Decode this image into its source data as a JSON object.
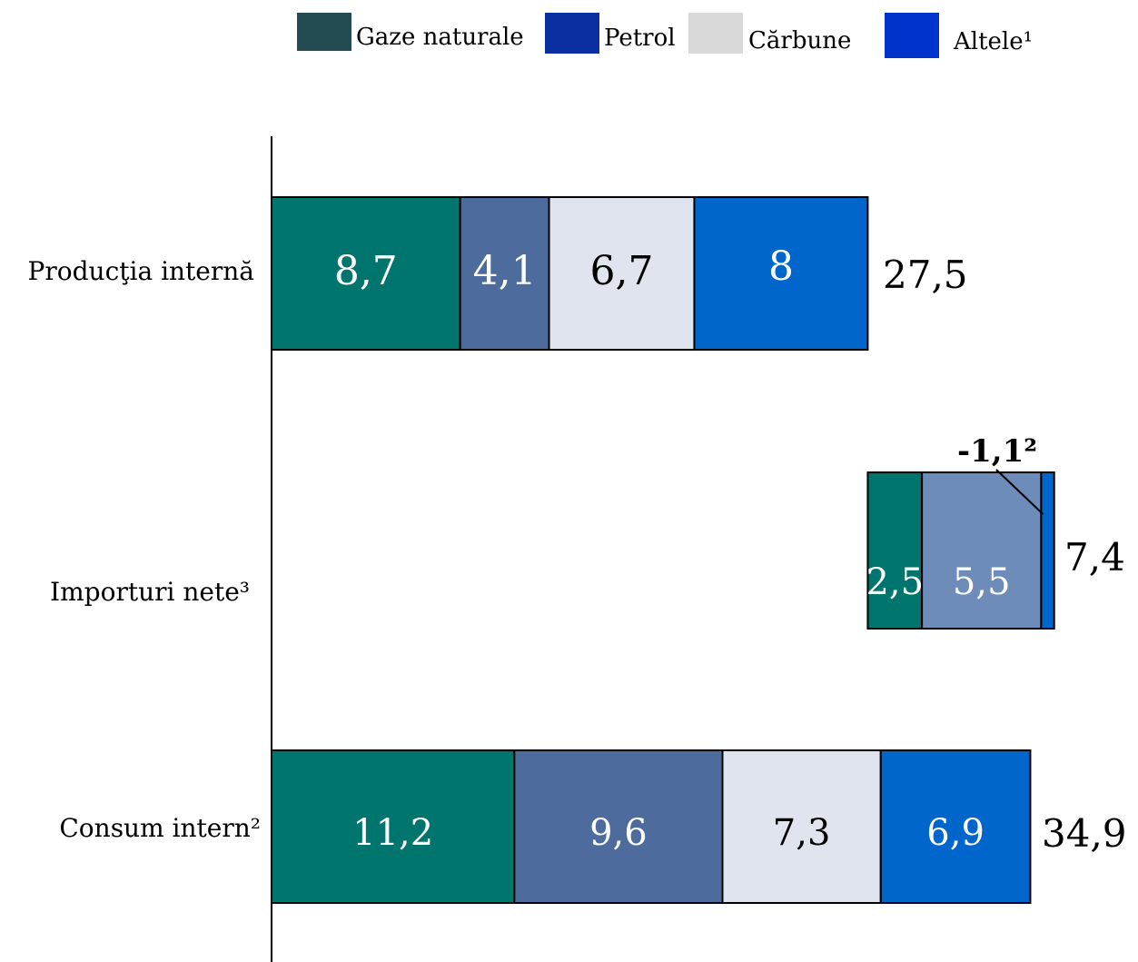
{
  "chart_data": {
    "type": "bar",
    "orientation": "horizontal",
    "stacked": true,
    "legend": {
      "placement": "top",
      "items": [
        {
          "label": "Gaze naturale",
          "color": "#234b52"
        },
        {
          "label": "Petrol",
          "color": "#0a2fa0"
        },
        {
          "label": "Cărbune",
          "color": "#d9d9d9"
        },
        {
          "label": "Altele¹",
          "color": "#0033cc"
        }
      ]
    },
    "rows": [
      {
        "label": "Producţia internă",
        "start": 0,
        "total_label": "27,5",
        "segments": [
          {
            "value": 8.7,
            "label": "8,7",
            "color": "#00756d",
            "text_color": "#ffffff"
          },
          {
            "value": 4.1,
            "label": "4,1",
            "color": "#4d6b9c",
            "text_color": "#ffffff"
          },
          {
            "value": 6.7,
            "label": "6,7",
            "color": "#dfe4ee",
            "text_color": "#000000"
          },
          {
            "value": 8,
            "label": "8",
            "color": "#0066cc",
            "text_color": "#ffffff"
          }
        ]
      },
      {
        "label": "Importuri nete³",
        "start": 27.5,
        "total_label": "7,4",
        "annotation": "-1,1²",
        "segments": [
          {
            "value": 2.5,
            "label": "2,5",
            "color": "#00756d",
            "text_color": "#ffffff"
          },
          {
            "value": 5.5,
            "label": "5,5",
            "color": "#6e8cb9",
            "text_color": "#ffffff"
          },
          {
            "value": 0.6,
            "label": "",
            "color": "#0066cc",
            "text_color": "#ffffff"
          }
        ]
      },
      {
        "label": "Consum intern²",
        "start": 0,
        "total_label": "34,9",
        "segments": [
          {
            "value": 11.2,
            "label": "11,2",
            "color": "#00756d",
            "text_color": "#ffffff"
          },
          {
            "value": 9.6,
            "label": "9,6",
            "color": "#4d6b9c",
            "text_color": "#ffffff"
          },
          {
            "value": 7.3,
            "label": "7,3",
            "color": "#dfe4ee",
            "text_color": "#000000"
          },
          {
            "value": 6.9,
            "label": "6,9",
            "color": "#0066cc",
            "text_color": "#ffffff"
          }
        ]
      }
    ]
  }
}
